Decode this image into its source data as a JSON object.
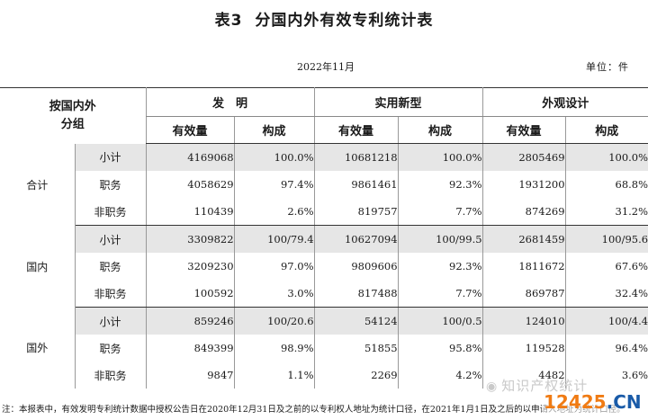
{
  "title": {
    "number": "表3",
    "text": "分国内外有效专利统计表"
  },
  "date": "2022年11月",
  "unit": "单位：件",
  "header": {
    "row_label_line1": "按国内外",
    "row_label_line2": "分组",
    "groups": [
      "发　明",
      "实用新型",
      "外观设计"
    ],
    "sub_columns": [
      "有效量",
      "构成",
      "有效量",
      "构成",
      "有效量",
      "构成"
    ]
  },
  "rows": [
    {
      "group": "合计",
      "items": [
        {
          "name": "小计",
          "values": [
            "4169068",
            "100.0%",
            "10681218",
            "100.0%",
            "2805469",
            "100.0%"
          ]
        },
        {
          "name": "职务",
          "values": [
            "4058629",
            "97.4%",
            "9861461",
            "92.3%",
            "1931200",
            "68.8%"
          ]
        },
        {
          "name": "非职务",
          "values": [
            "110439",
            "2.6%",
            "819757",
            "7.7%",
            "874269",
            "31.2%"
          ]
        }
      ]
    },
    {
      "group": "国内",
      "items": [
        {
          "name": "小计",
          "values": [
            "3309822",
            "100/79.4",
            "10627094",
            "100/99.5",
            "2681459",
            "100/95.6"
          ]
        },
        {
          "name": "职务",
          "values": [
            "3209230",
            "97.0%",
            "9809606",
            "92.3%",
            "1811672",
            "67.6%"
          ]
        },
        {
          "name": "非职务",
          "values": [
            "100592",
            "3.0%",
            "817488",
            "7.7%",
            "869787",
            "32.4%"
          ]
        }
      ]
    },
    {
      "group": "国外",
      "items": [
        {
          "name": "小计",
          "values": [
            "859246",
            "100/20.6",
            "54124",
            "100/0.5",
            "124010",
            "100/4.4"
          ]
        },
        {
          "name": "职务",
          "values": [
            "849399",
            "98.9%",
            "51855",
            "95.8%",
            "119528",
            "96.4%"
          ]
        },
        {
          "name": "非职务",
          "values": [
            "9847",
            "1.1%",
            "2269",
            "4.2%",
            "4482",
            "3.6%"
          ]
        }
      ]
    }
  ],
  "note": "注：本报表中，有效发明专利统计数据中授权公告日在2020年12月31日及之前的以专利权人地址为统计口径，在2021年1月1日及之后的以申请人地址为统计口径。",
  "watermark": {
    "text": "知识产权统计",
    "icon": "wechat-icon"
  },
  "logo": {
    "part_a": "12425",
    "part_b": ".CN",
    "color_a": "#f07b13",
    "color_b": "#1a5ba8"
  },
  "colors": {
    "subtotal_shade": "#e6e6e6",
    "rule": "#333333"
  }
}
